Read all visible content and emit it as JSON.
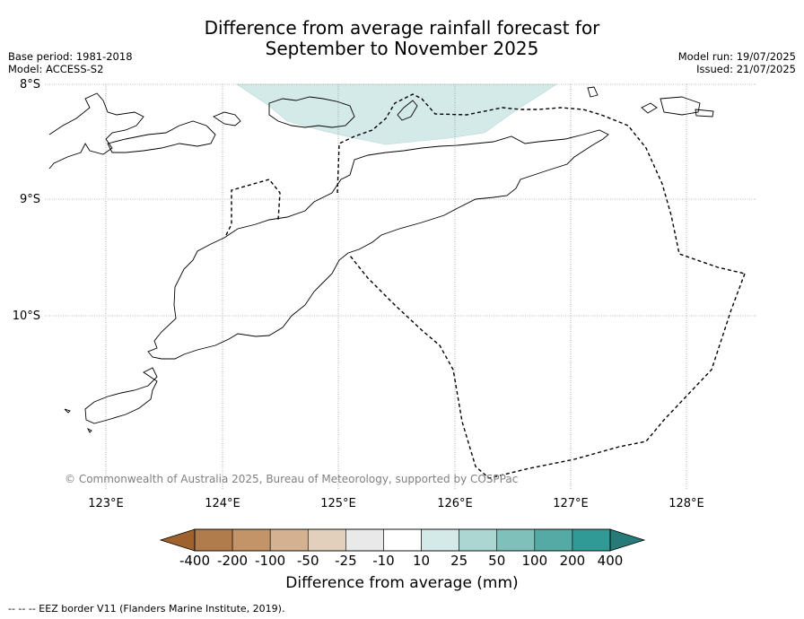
{
  "title": {
    "line1": "Difference from average rainfall forecast for",
    "line2": "September to November 2025"
  },
  "meta_left": {
    "base_period": "Base period: 1981-2018",
    "model": "Model: ACCESS-S2"
  },
  "meta_right": {
    "model_run": "Model run: 19/07/2025",
    "issued": "Issued: 21/07/2025"
  },
  "latitude_labels": [
    "8°S",
    "9°S",
    "10°S"
  ],
  "longitude_labels": [
    "123°E",
    "124°E",
    "125°E",
    "126°E",
    "127°E",
    "128°E"
  ],
  "copyright": "© Commonwealth of Australia 2025, Bureau of Meteorology, supported by COSPPac",
  "colorbar": {
    "title": "Difference from average (mm)",
    "ticks": [
      "-400",
      "-200",
      "-100",
      "-50",
      "-25",
      "-10",
      "10",
      "25",
      "50",
      "100",
      "200",
      "400"
    ],
    "colors": {
      "below_-400": "#a0622d",
      "-400_-200": "#b07c4b",
      "-200_-100": "#c29468",
      "-100_-50": "#d4b291",
      "-50_-25": "#e3d0bc",
      "-25_-10": "#e9e9e9",
      "-10_10": "#ffffff",
      "10_25": "#d4eae8",
      "25_50": "#abd6d2",
      "50_100": "#80c0ba",
      "100_200": "#55aaa6",
      "200_400": "#309a96",
      "above_400": "#267a78"
    }
  },
  "map_fill_color": "#d4eae8",
  "legend_footnote": "--  --  -- EEZ border V11 (Flanders Marine Institute, 2019)."
}
